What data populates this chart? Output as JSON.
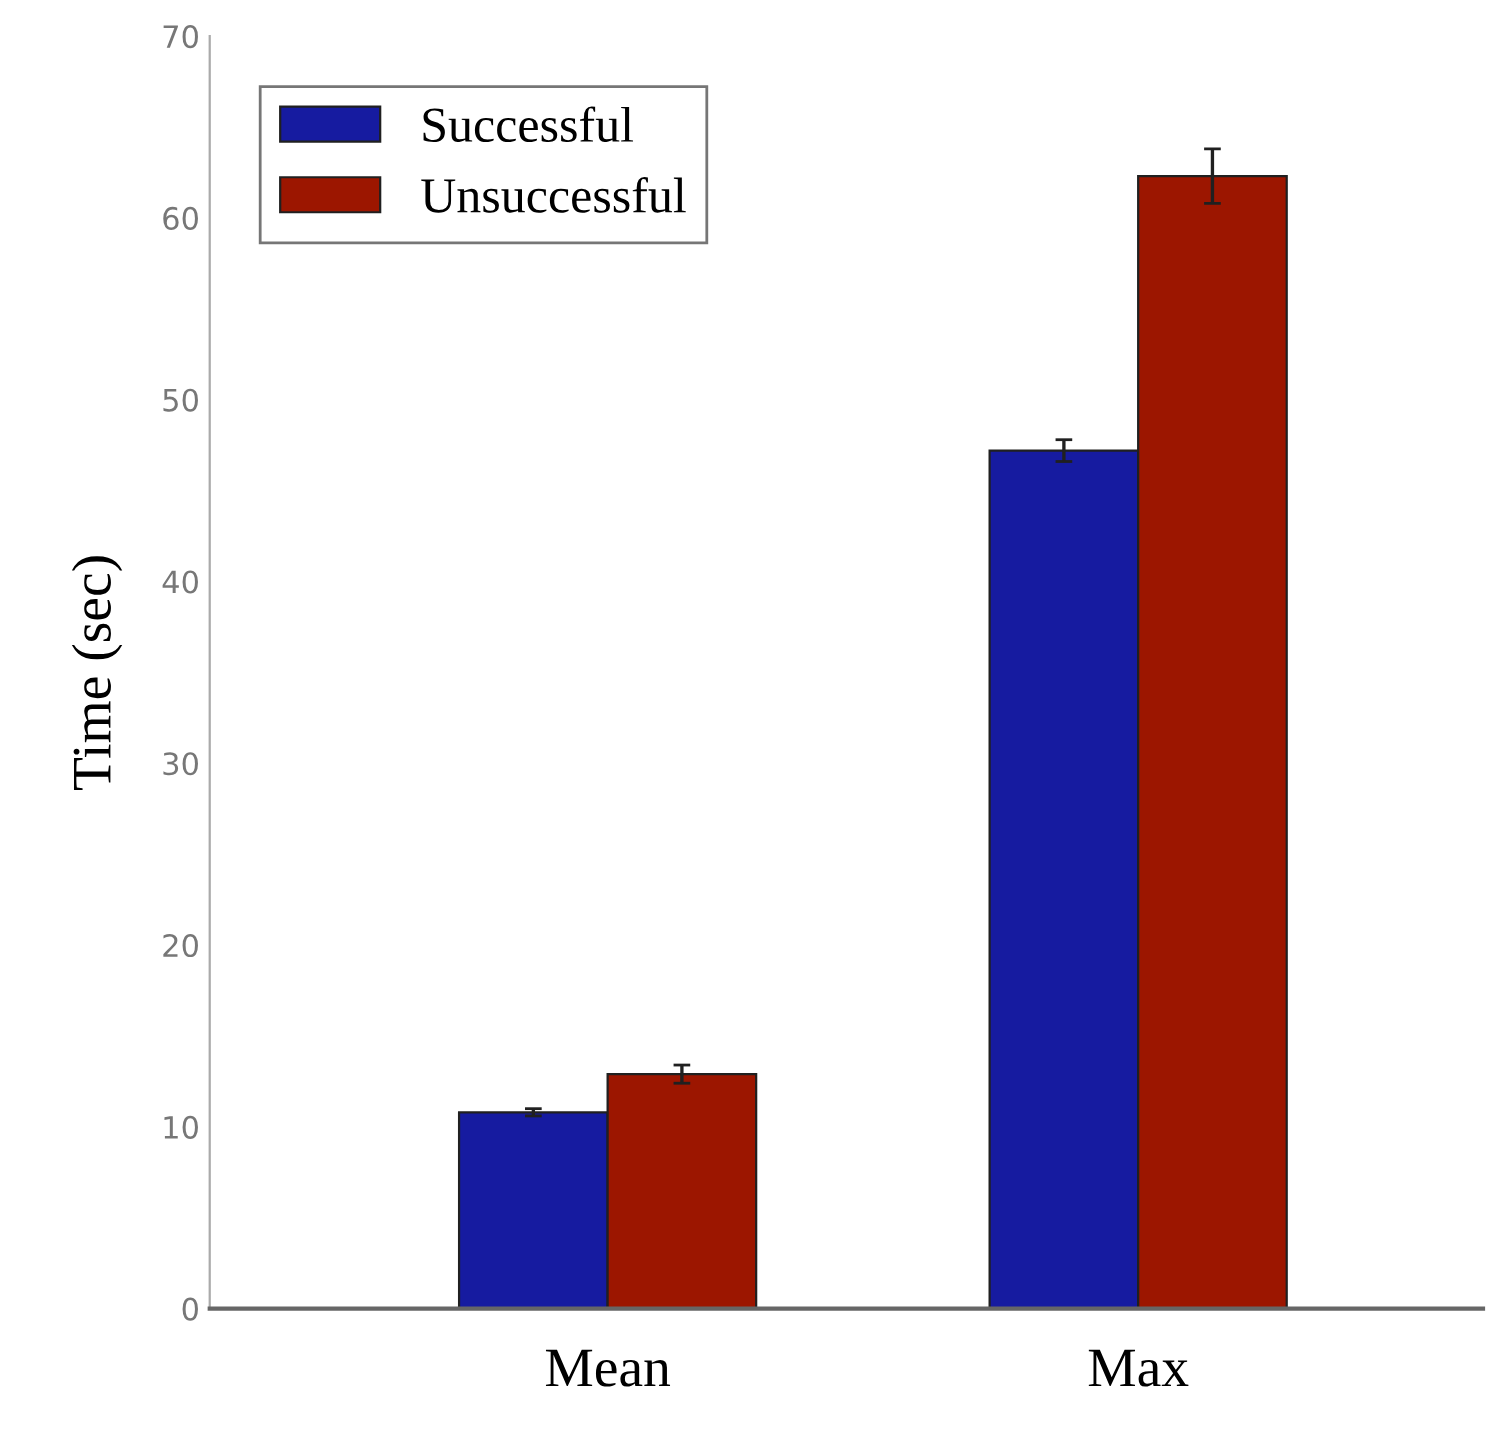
{
  "chart_data": {
    "type": "bar",
    "ylabel": "Time (sec)",
    "categories": [
      "Mean",
      "Max"
    ],
    "series": [
      {
        "name": "Successful",
        "color": "#161ba0",
        "values": [
          10.8,
          47.2
        ],
        "errors": [
          0.2,
          0.6
        ]
      },
      {
        "name": "Unsuccessful",
        "color": "#9c1600",
        "values": [
          12.9,
          62.3
        ],
        "errors": [
          0.5,
          1.5
        ]
      }
    ],
    "ylim": [
      0,
      70
    ],
    "yticks": [
      0,
      10,
      20,
      30,
      40,
      50,
      60,
      70
    ],
    "grid": false,
    "legend": "top left"
  }
}
